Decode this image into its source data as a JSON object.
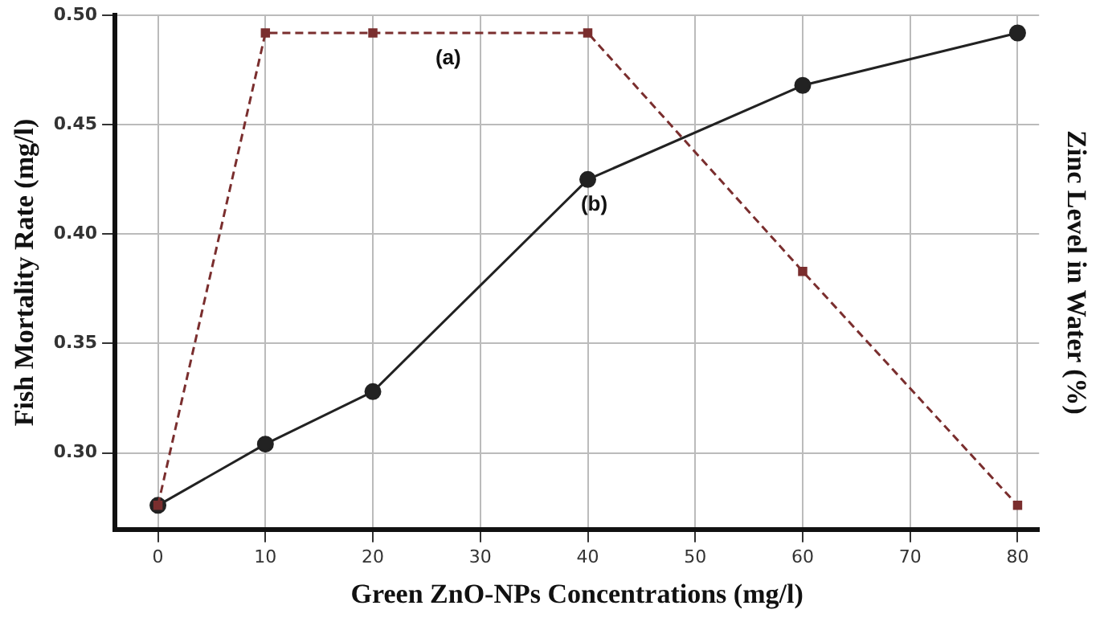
{
  "chart_data": {
    "type": "line",
    "xlabel": "Green ZnO-NPs Concentrations (mg/l)",
    "ylabel": "Fish Mortality Rate (mg/l)",
    "y2label": "Zinc Level in Water (%)",
    "x": [
      0,
      10,
      20,
      40,
      60,
      80
    ],
    "series": [
      {
        "name": "(a)",
        "color": "#7a2e2e",
        "values": [
          0.276,
          0.492,
          0.492,
          0.492,
          0.383,
          0.276
        ],
        "marker": "square",
        "line_style": "dashed"
      },
      {
        "name": "(b)",
        "color": "#222222",
        "values": [
          0.276,
          0.304,
          0.328,
          0.425,
          0.468,
          0.492
        ],
        "marker": "circle",
        "line_style": "solid"
      }
    ],
    "xlim": [
      -4,
      82
    ],
    "xticks": [
      0,
      10,
      20,
      30,
      40,
      50,
      60,
      70,
      80
    ],
    "ylim": [
      0.265,
      0.5
    ],
    "yticks": [
      {
        "value": 0.3,
        "label": "0.30"
      },
      0.35,
      {
        "value": 0.4,
        "label": "0.40"
      },
      0.45,
      {
        "value": 0.5,
        "label": "0.50"
      }
    ],
    "grid": true,
    "legend": false
  }
}
